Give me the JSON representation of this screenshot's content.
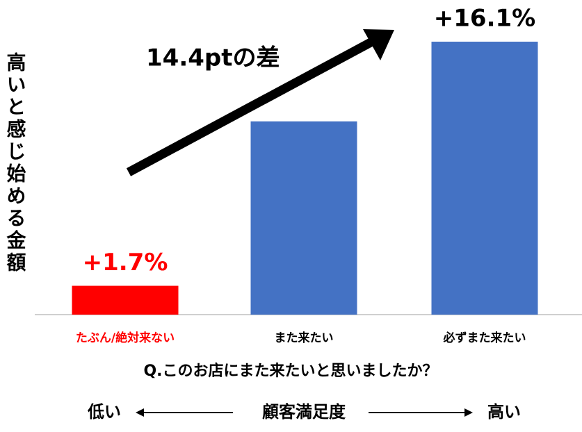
{
  "chart_data": {
    "type": "bar",
    "y_label": "高いと感じ始める金額",
    "annotation": "14.4ptの差",
    "x_label": "Q.このお店にまた来たいと思いましたか？",
    "categories": [
      "たぶん/絶対来ない",
      "また来たい",
      "必ずまた来たい"
    ],
    "values": [
      1.7,
      11.4,
      16.1
    ],
    "value_labels": [
      "+1.7%",
      null,
      "+16.1%"
    ],
    "colors": [
      "#ff0000",
      "#4472c4",
      "#4472c4"
    ],
    "label_colors": [
      "#ff0000",
      "#000000",
      "#000000"
    ],
    "scale_left": "低い",
    "scale_title": "顧客満足度",
    "scale_right": "高い"
  }
}
